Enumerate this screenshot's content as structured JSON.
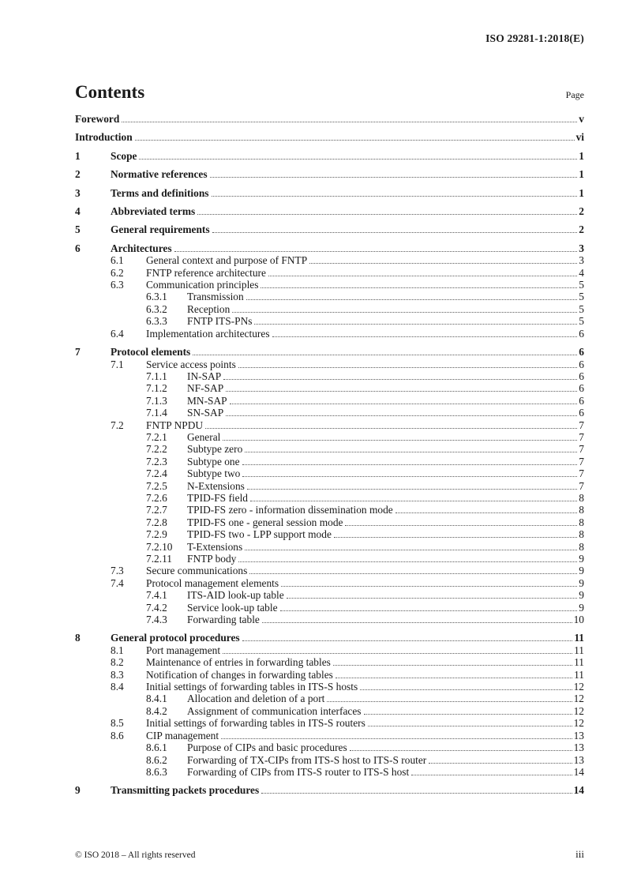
{
  "header": {
    "doc_ref": "ISO 29281-1:2018(E)"
  },
  "contents": {
    "title": "Contents",
    "page_label": "Page"
  },
  "footer": {
    "copyright": "© ISO 2018 – All rights reserved",
    "page_number": "iii"
  },
  "toc": [
    {
      "level": 0,
      "num": "",
      "title": "Foreword",
      "page": "v"
    },
    {
      "level": 0,
      "num": "",
      "title": "Introduction",
      "page": "vi"
    },
    {
      "level": 1,
      "num": "1",
      "title": "Scope",
      "page": "1"
    },
    {
      "level": 1,
      "num": "2",
      "title": "Normative references",
      "page": "1"
    },
    {
      "level": 1,
      "num": "3",
      "title": "Terms and definitions",
      "page": "1"
    },
    {
      "level": 1,
      "num": "4",
      "title": "Abbreviated terms",
      "page": "2"
    },
    {
      "level": 1,
      "num": "5",
      "title": "General requirements",
      "page": "2"
    },
    {
      "level": 1,
      "num": "6",
      "title": "Architectures",
      "page": "3"
    },
    {
      "level": 2,
      "num": "6.1",
      "title": "General context and purpose of FNTP",
      "page": "3"
    },
    {
      "level": 2,
      "num": "6.2",
      "title": "FNTP reference architecture",
      "page": "4"
    },
    {
      "level": 2,
      "num": "6.3",
      "title": "Communication principles",
      "page": "5"
    },
    {
      "level": 3,
      "num": "6.3.1",
      "title": "Transmission",
      "page": "5"
    },
    {
      "level": 3,
      "num": "6.3.2",
      "title": "Reception",
      "page": "5"
    },
    {
      "level": 3,
      "num": "6.3.3",
      "title": "FNTP ITS-PNs",
      "page": "5"
    },
    {
      "level": 2,
      "num": "6.4",
      "title": "Implementation architectures",
      "page": "6"
    },
    {
      "level": 1,
      "num": "7",
      "title": "Protocol elements",
      "page": "6"
    },
    {
      "level": 2,
      "num": "7.1",
      "title": "Service access points",
      "page": "6"
    },
    {
      "level": 3,
      "num": "7.1.1",
      "title": "IN-SAP",
      "page": "6"
    },
    {
      "level": 3,
      "num": "7.1.2",
      "title": "NF-SAP",
      "page": "6"
    },
    {
      "level": 3,
      "num": "7.1.3",
      "title": "MN-SAP",
      "page": "6"
    },
    {
      "level": 3,
      "num": "7.1.4",
      "title": "SN-SAP",
      "page": "6"
    },
    {
      "level": 2,
      "num": "7.2",
      "title": "FNTP NPDU",
      "page": "7"
    },
    {
      "level": 3,
      "num": "7.2.1",
      "title": "General",
      "page": "7"
    },
    {
      "level": 3,
      "num": "7.2.2",
      "title": "Subtype zero",
      "page": "7"
    },
    {
      "level": 3,
      "num": "7.2.3",
      "title": "Subtype one",
      "page": "7"
    },
    {
      "level": 3,
      "num": "7.2.4",
      "title": "Subtype two",
      "page": "7"
    },
    {
      "level": 3,
      "num": "7.2.5",
      "title": "N-Extensions",
      "page": "7"
    },
    {
      "level": 3,
      "num": "7.2.6",
      "title": "TPID-FS field",
      "page": "8"
    },
    {
      "level": 3,
      "num": "7.2.7",
      "title": "TPID-FS zero - information dissemination mode",
      "page": "8"
    },
    {
      "level": 3,
      "num": "7.2.8",
      "title": "TPID-FS one - general session mode",
      "page": "8"
    },
    {
      "level": 3,
      "num": "7.2.9",
      "title": "TPID-FS two - LPP support mode",
      "page": "8"
    },
    {
      "level": 3,
      "num": "7.2.10",
      "title": "T-Extensions",
      "page": "8"
    },
    {
      "level": 3,
      "num": "7.2.11",
      "title": "FNTP body",
      "page": "9"
    },
    {
      "level": 2,
      "num": "7.3",
      "title": "Secure communications",
      "page": "9"
    },
    {
      "level": 2,
      "num": "7.4",
      "title": "Protocol management elements",
      "page": "9"
    },
    {
      "level": 3,
      "num": "7.4.1",
      "title": "ITS-AID look-up table",
      "page": "9"
    },
    {
      "level": 3,
      "num": "7.4.2",
      "title": "Service look-up table",
      "page": "9"
    },
    {
      "level": 3,
      "num": "7.4.3",
      "title": "Forwarding table",
      "page": "10"
    },
    {
      "level": 1,
      "num": "8",
      "title": "General protocol procedures",
      "page": "11"
    },
    {
      "level": 2,
      "num": "8.1",
      "title": "Port management",
      "page": "11"
    },
    {
      "level": 2,
      "num": "8.2",
      "title": "Maintenance of entries in forwarding tables",
      "page": "11"
    },
    {
      "level": 2,
      "num": "8.3",
      "title": "Notification of changes in forwarding tables",
      "page": "11"
    },
    {
      "level": 2,
      "num": "8.4",
      "title": "Initial settings of forwarding tables in ITS-S hosts",
      "page": "12"
    },
    {
      "level": 3,
      "num": "8.4.1",
      "title": "Allocation and deletion of a port",
      "page": "12"
    },
    {
      "level": 3,
      "num": "8.4.2",
      "title": "Assignment of communication interfaces",
      "page": "12"
    },
    {
      "level": 2,
      "num": "8.5",
      "title": "Initial settings of forwarding tables in ITS-S routers",
      "page": "12"
    },
    {
      "level": 2,
      "num": "8.6",
      "title": "CIP management",
      "page": "13"
    },
    {
      "level": 3,
      "num": "8.6.1",
      "title": "Purpose of CIPs and basic procedures",
      "page": "13"
    },
    {
      "level": 3,
      "num": "8.6.2",
      "title": "Forwarding of TX-CIPs from ITS-S host to ITS-S router",
      "page": "13"
    },
    {
      "level": 3,
      "num": "8.6.3",
      "title": "Forwarding of CIPs from ITS-S router to ITS-S host",
      "page": "14"
    },
    {
      "level": 1,
      "num": "9",
      "title": "Transmitting packets procedures",
      "page": "14"
    }
  ]
}
